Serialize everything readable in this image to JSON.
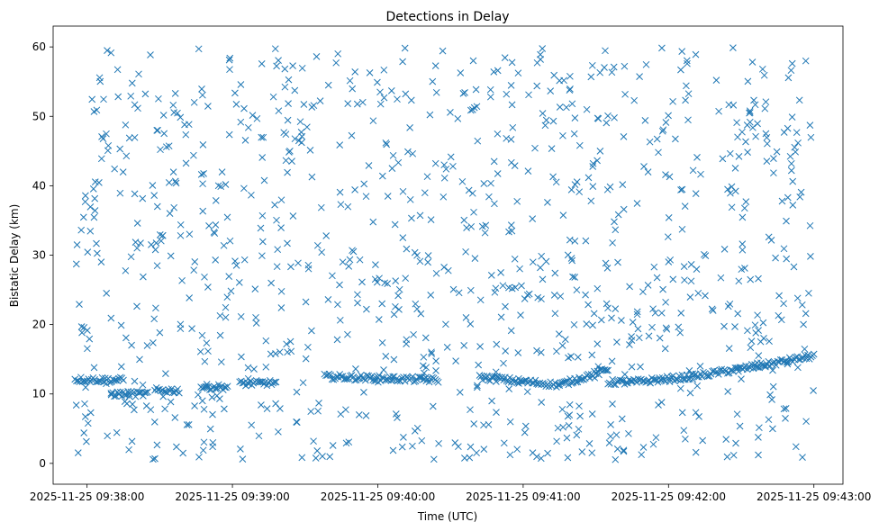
{
  "chart_data": {
    "type": "scatter",
    "title": "Detections in Delay",
    "xlabel": "Time (UTC)",
    "ylabel": "Bistatic Delay (km)",
    "marker": "x",
    "color": "#1f77b4",
    "grid": false,
    "legend": "none",
    "x_start": "2025-11-25 09:37:55",
    "x_end": "2025-11-25 09:43:00",
    "xlim": [
      "2025-11-25 09:37:46",
      "2025-11-25 09:43:12"
    ],
    "ylim": [
      -3,
      63
    ],
    "x_ticks": [
      "2025-11-25 09:38:00",
      "2025-11-25 09:39:00",
      "2025-11-25 09:40:00",
      "2025-11-25 09:41:00",
      "2025-11-25 09:42:00",
      "2025-11-25 09:43:00"
    ],
    "y_ticks": [
      0,
      10,
      20,
      30,
      40,
      50,
      60
    ],
    "track_segments": [
      {
        "t_start": "2025-11-25 09:37:55",
        "t_end": "2025-11-25 09:38:15",
        "delay_start": 12.1,
        "delay_end": 12.0
      },
      {
        "t_start": "2025-11-25 09:38:10",
        "t_end": "2025-11-25 09:38:25",
        "delay_start": 10.0,
        "delay_end": 10.0
      },
      {
        "t_start": "2025-11-25 09:38:28",
        "t_end": "2025-11-25 09:38:38",
        "delay_start": 10.5,
        "delay_end": 10.5
      },
      {
        "t_start": "2025-11-25 09:38:47",
        "t_end": "2025-11-25 09:38:58",
        "delay_start": 11.0,
        "delay_end": 11.0
      },
      {
        "t_start": "2025-11-25 09:39:03",
        "t_end": "2025-11-25 09:39:18",
        "delay_start": 11.5,
        "delay_end": 11.6
      },
      {
        "t_start": "2025-11-25 09:39:38",
        "t_end": "2025-11-25 09:40:25",
        "delay_start": 12.5,
        "delay_end": 12.0
      },
      {
        "t_start": "2025-11-25 09:40:42",
        "t_end": "2025-11-25 09:41:15",
        "delay_start": 12.4,
        "delay_end": 11.3
      },
      {
        "t_start": "2025-11-25 09:41:15",
        "t_end": "2025-11-25 09:41:35",
        "delay_start": 11.3,
        "delay_end": 13.5
      },
      {
        "t_start": "2025-11-25 09:41:35",
        "t_end": "2025-11-25 09:41:45",
        "delay_start": 11.7,
        "delay_end": 11.7
      },
      {
        "t_start": "2025-11-25 09:41:45",
        "t_end": "2025-11-25 09:42:10",
        "delay_start": 11.7,
        "delay_end": 12.5
      },
      {
        "t_start": "2025-11-25 09:42:10",
        "t_end": "2025-11-25 09:42:40",
        "delay_start": 12.5,
        "delay_end": 14.2
      },
      {
        "t_start": "2025-11-25 09:42:40",
        "t_end": "2025-11-25 09:43:00",
        "delay_start": 14.2,
        "delay_end": 15.5
      }
    ],
    "clutter_points": 1000,
    "clutter_delay_range": [
      0.5,
      60
    ]
  }
}
